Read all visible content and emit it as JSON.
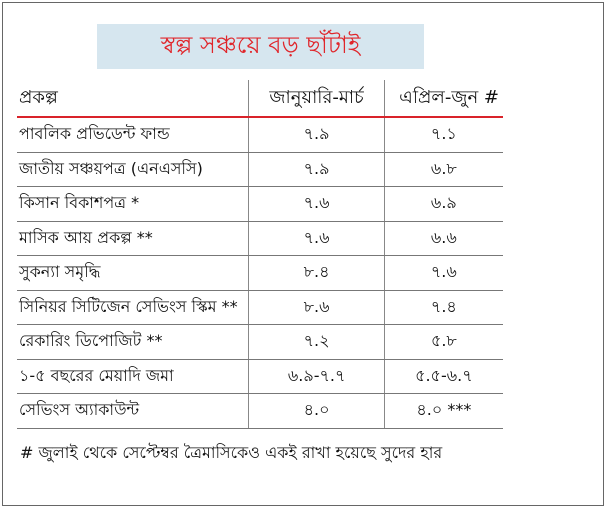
{
  "title": "স্বল্প সঞ্চয়ে বড় ছাঁটাই",
  "colors": {
    "title_text": "#e0262b",
    "title_background": "#d6e6ef",
    "header_rule": "#d9232a"
  },
  "table": {
    "headers": [
      "প্রকল্প",
      "জানুয়ারি-মার্চ",
      "এপ্রিল-জুন #"
    ],
    "rows": [
      [
        "পাবলিক প্রভিডেন্ট ফান্ড",
        "৭.৯",
        "৭.১"
      ],
      [
        "জাতীয় সঞ্চয়পত্র (এনএসসি)",
        "৭.৯",
        "৬.৮"
      ],
      [
        "কিসান বিকাশপত্র *",
        "৭.৬",
        "৬.৯"
      ],
      [
        "মাসিক আয় প্রকল্প **",
        "৭.৬",
        "৬.৬"
      ],
      [
        "সুকন্যা সমৃদ্ধি",
        "৮.৪",
        "৭.৬"
      ],
      [
        "সিনিয়র সিটিজেন সেভিংস স্কিম **",
        "৮.৬",
        "৭.৪"
      ],
      [
        "রেকারিং ডিপোজিট **",
        "৭.২",
        "৫.৮"
      ],
      [
        "১-৫ বছরের মেয়াদি জমা",
        "৬.৯-৭.৭",
        "৫.৫-৬.৭"
      ],
      [
        "সেভিংস অ্যাকাউন্ট",
        "৪.০",
        "৪.০ ***"
      ]
    ]
  },
  "footnote": "# জুলাই থেকে সেপ্টেম্বর ত্রৈমাসিকেও একই রাখা হয়েছে সুদের হার"
}
